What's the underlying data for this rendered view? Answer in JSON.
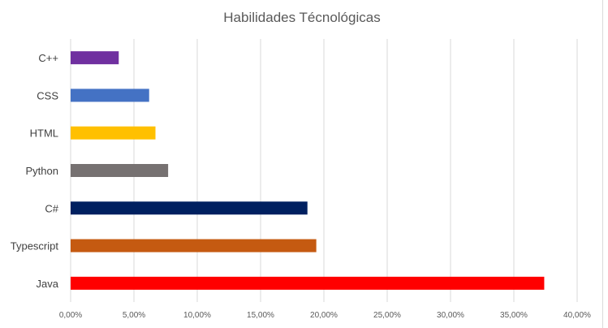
{
  "chart_data": {
    "type": "bar",
    "orientation": "horizontal",
    "title": "Habilidades Técnológicas",
    "xlabel": "",
    "ylabel": "",
    "categories": [
      "C++",
      "CSS",
      "HTML",
      "Python",
      "C#",
      "Typescript",
      "Java"
    ],
    "values": [
      0.038,
      0.062,
      0.067,
      0.077,
      0.187,
      0.194,
      0.374
    ],
    "bar_colors": [
      "#7030A0",
      "#4472C4",
      "#FFC000",
      "#767171",
      "#002060",
      "#C55A11",
      "#FF0000"
    ],
    "xlim": [
      0,
      0.4
    ],
    "x_ticks": [
      "0,00%",
      "5,00%",
      "10,00%",
      "15,00%",
      "20,00%",
      "25,00%",
      "30,00%",
      "35,00%",
      "40,00%"
    ],
    "grid": true,
    "legend": "none"
  }
}
